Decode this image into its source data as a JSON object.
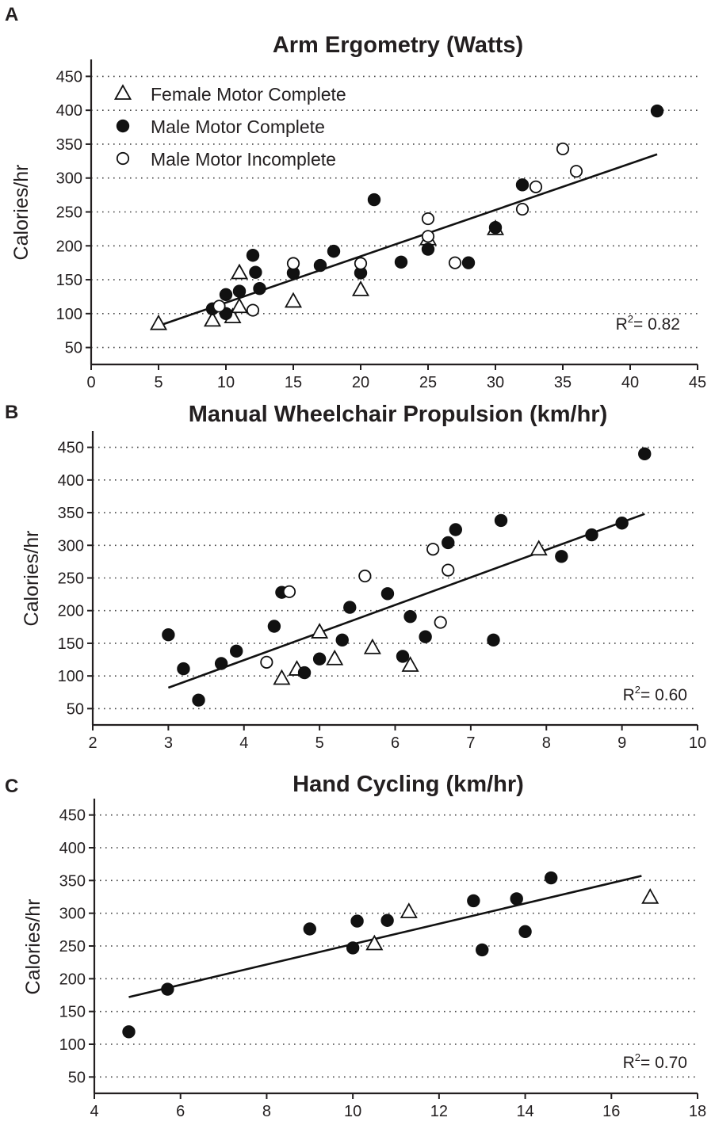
{
  "legend": [
    {
      "key": "female_complete",
      "label": "Female Motor Complete",
      "marker": "open-triangle"
    },
    {
      "key": "male_complete",
      "label": "Male Motor Complete",
      "marker": "filled-circle"
    },
    {
      "key": "male_incomplete",
      "label": "Male Motor Incomplete",
      "marker": "open-circle"
    }
  ],
  "chart_data": [
    {
      "panel": "A",
      "type": "scatter",
      "title": "Arm Ergometry (Watts)",
      "xlabel": "",
      "ylabel": "Calories/hr",
      "xlim": [
        0,
        45
      ],
      "ylim": [
        25,
        475
      ],
      "xticks": [
        0,
        5,
        10,
        15,
        20,
        25,
        30,
        35,
        40,
        45
      ],
      "yticks": [
        50,
        100,
        150,
        200,
        250,
        300,
        350,
        400,
        450
      ],
      "grid": "horizontal-dotted",
      "legend_position": "top-left",
      "r2_label": "R",
      "r2_value": "= 0.82",
      "fit_line": {
        "x": [
          5,
          42
        ],
        "y": [
          82,
          335
        ]
      },
      "series": [
        {
          "name": "Female Motor Complete",
          "key": "female_complete",
          "x": [
            5,
            9,
            10.5,
            11,
            11,
            15,
            20,
            25,
            30
          ],
          "y": [
            85,
            90,
            95,
            110,
            160,
            118,
            135,
            210,
            225
          ]
        },
        {
          "name": "Male Motor Complete",
          "key": "male_complete",
          "x": [
            9,
            10,
            10,
            11,
            12,
            12.2,
            12.5,
            15,
            17,
            18,
            20,
            21,
            23,
            25,
            28,
            30,
            32,
            42
          ],
          "y": [
            107,
            100,
            128,
            133,
            186,
            161,
            137,
            160,
            171,
            192,
            160,
            268,
            176,
            195,
            175,
            227,
            290,
            399
          ]
        },
        {
          "name": "Male Motor Incomplete",
          "key": "male_incomplete",
          "x": [
            9.5,
            12,
            15,
            20,
            25,
            25,
            27,
            32,
            33,
            35,
            36
          ],
          "y": [
            111,
            105,
            174,
            174,
            240,
            214,
            175,
            254,
            287,
            343,
            310
          ]
        }
      ]
    },
    {
      "panel": "B",
      "type": "scatter",
      "title": "Manual Wheelchair Propulsion (km/hr)",
      "xlabel": "",
      "ylabel": "Calories/hr",
      "xlim": [
        2,
        10
      ],
      "ylim": [
        25,
        475
      ],
      "xticks": [
        2,
        3,
        4,
        5,
        6,
        7,
        8,
        9,
        10
      ],
      "yticks": [
        50,
        100,
        150,
        200,
        250,
        300,
        350,
        400,
        450
      ],
      "grid": "horizontal-dotted",
      "r2_label": "R",
      "r2_value": "= 0.60",
      "fit_line": {
        "x": [
          3,
          9.3
        ],
        "y": [
          82,
          348
        ]
      },
      "series": [
        {
          "name": "Female Motor Complete",
          "key": "female_complete",
          "x": [
            4.5,
            4.7,
            5.0,
            5.2,
            5.7,
            6.2,
            7.9
          ],
          "y": [
            96,
            110,
            167,
            126,
            143,
            116,
            294
          ]
        },
        {
          "name": "Male Motor Complete",
          "key": "male_complete",
          "x": [
            3.0,
            3.2,
            3.4,
            3.7,
            3.9,
            4.4,
            4.5,
            4.8,
            5.0,
            5.3,
            5.4,
            5.9,
            6.1,
            6.2,
            6.4,
            6.7,
            6.8,
            7.3,
            7.4,
            8.2,
            8.6,
            9.0,
            9.3
          ],
          "y": [
            163,
            111,
            63,
            119,
            138,
            176,
            228,
            105,
            126,
            155,
            205,
            226,
            130,
            191,
            160,
            304,
            324,
            155,
            338,
            283,
            316,
            334,
            440
          ]
        },
        {
          "name": "Male Motor Incomplete",
          "key": "male_incomplete",
          "x": [
            4.3,
            4.6,
            5.6,
            6.5,
            6.6,
            6.7
          ],
          "y": [
            121,
            229,
            253,
            294,
            182,
            262
          ]
        }
      ]
    },
    {
      "panel": "C",
      "type": "scatter",
      "title": "Hand Cycling (km/hr)",
      "xlabel": "",
      "ylabel": "Calories/hr",
      "xlim": [
        4,
        18
      ],
      "ylim": [
        25,
        475
      ],
      "xticks": [
        4,
        6,
        8,
        10,
        12,
        14,
        16,
        18
      ],
      "yticks": [
        50,
        100,
        150,
        200,
        250,
        300,
        350,
        400,
        450
      ],
      "grid": "horizontal-dotted",
      "r2_label": "R",
      "r2_value": "= 0.70",
      "fit_line": {
        "x": [
          4.8,
          16.7
        ],
        "y": [
          172,
          357
        ]
      },
      "series": [
        {
          "name": "Female Motor Complete",
          "key": "female_complete",
          "x": [
            10.5,
            11.3,
            16.9
          ],
          "y": [
            253,
            302,
            324
          ]
        },
        {
          "name": "Male Motor Complete",
          "key": "male_complete",
          "x": [
            4.8,
            5.7,
            9.0,
            10.0,
            10.1,
            10.8,
            12.8,
            13.0,
            13.8,
            14.0,
            14.6
          ],
          "y": [
            119,
            184,
            276,
            247,
            288,
            289,
            319,
            244,
            322,
            272,
            354
          ]
        }
      ]
    }
  ]
}
